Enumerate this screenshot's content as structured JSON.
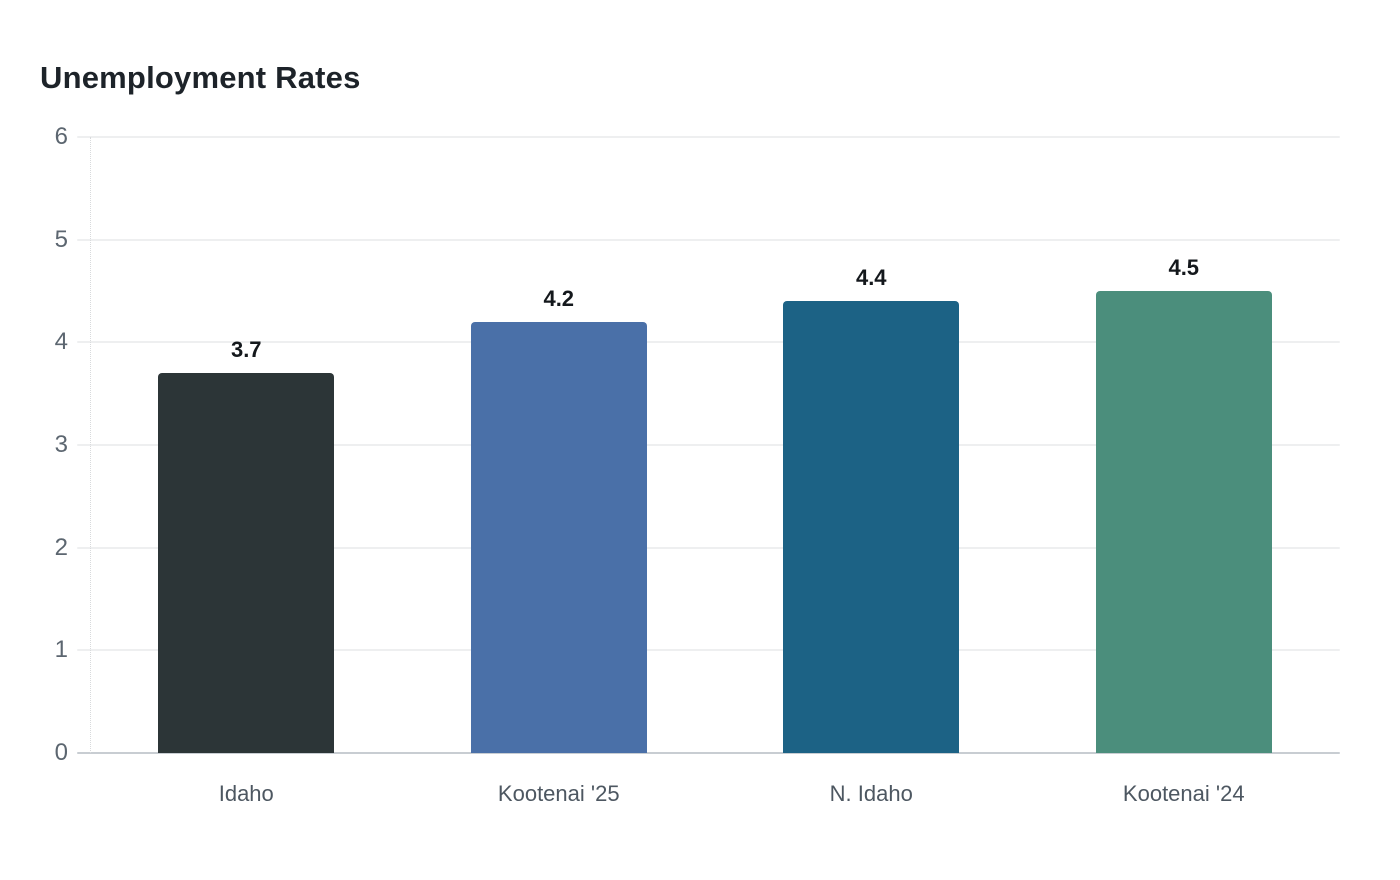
{
  "page": {
    "background_color": "#ffffff"
  },
  "chart_data": {
    "type": "bar",
    "title": "Unemployment Rates",
    "categories": [
      "Idaho",
      "Kootenai '25",
      "N. Idaho",
      "Kootenai '24"
    ],
    "values": [
      3.7,
      4.2,
      4.4,
      4.5
    ],
    "value_labels": [
      "3.7",
      "4.2",
      "4.4",
      "4.5"
    ],
    "bar_colors": [
      "#2c3537",
      "#4a70a8",
      "#1c6285",
      "#4b8e7c"
    ],
    "xlabel": "",
    "ylabel": "",
    "ylim": [
      0,
      6
    ],
    "yticks": [
      0,
      1,
      2,
      3,
      4,
      5,
      6
    ],
    "grid": "horizontal gridlines only",
    "legend_position": "none",
    "styles": {
      "title_color": "#1d2329",
      "value_label_color": "#14181c",
      "axis_tick_color": "#5c6670",
      "category_label_color": "#4d5761",
      "gridline_color": "#eeeff0",
      "baseline_color": "#c8cdd2",
      "axis_dotted_line_color": "#d8dadc"
    }
  }
}
